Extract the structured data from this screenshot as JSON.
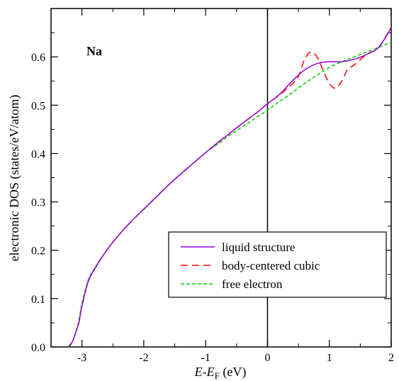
{
  "chart_data": {
    "type": "line",
    "title": "",
    "annotation": "Na",
    "xlabel": "E-E_F (eV)",
    "xlabel_parts": {
      "var": "E",
      "minus": "-",
      "sub_var": "E",
      "subscript": "F",
      "unit": " (eV)"
    },
    "ylabel": "electronic DOS (states/eV/atom)",
    "xlim": [
      -3.5,
      2.0
    ],
    "ylim": [
      0.0,
      0.7
    ],
    "xticks": [
      -3,
      -2,
      -1,
      0,
      1,
      2
    ],
    "xtick_labels": [
      "-3",
      "-2",
      "-1",
      "0",
      "1",
      "2"
    ],
    "yticks": [
      0.0,
      0.1,
      0.2,
      0.3,
      0.4,
      0.5,
      0.6
    ],
    "ytick_labels": [
      "0.0",
      "0.1",
      "0.2",
      "0.3",
      "0.4",
      "0.5",
      "0.6"
    ],
    "vertical_line_x": 0.0,
    "grid": false,
    "legend_position": "bottom-right",
    "series": [
      {
        "name": "liquid structure",
        "color": "#9400d3",
        "dash": "solid",
        "x": [
          -3.22,
          -3.15,
          -3.1,
          -3.05,
          -3.0,
          -2.9,
          -2.8,
          -2.6,
          -2.4,
          -2.2,
          -2.0,
          -1.8,
          -1.6,
          -1.4,
          -1.2,
          -1.0,
          -0.8,
          -0.6,
          -0.4,
          -0.2,
          0.0,
          0.2,
          0.4,
          0.6,
          0.8,
          1.0,
          1.2,
          1.4,
          1.6,
          1.8,
          2.0
        ],
        "y": [
          0.0,
          0.012,
          0.03,
          0.05,
          0.085,
          0.135,
          0.16,
          0.2,
          0.232,
          0.26,
          0.285,
          0.31,
          0.335,
          0.358,
          0.38,
          0.402,
          0.423,
          0.443,
          0.463,
          0.482,
          0.503,
          0.523,
          0.55,
          0.573,
          0.586,
          0.59,
          0.59,
          0.595,
          0.605,
          0.62,
          0.66
        ]
      },
      {
        "name": "body-centered cubic",
        "color": "#ff0000",
        "dash": "long-dash",
        "x": [
          -3.22,
          -3.15,
          -3.1,
          -3.05,
          -3.0,
          -2.9,
          -2.8,
          -2.6,
          -2.4,
          -2.2,
          -2.0,
          -1.8,
          -1.6,
          -1.4,
          -1.2,
          -1.0,
          -0.8,
          -0.6,
          -0.4,
          -0.2,
          0.0,
          0.2,
          0.4,
          0.5,
          0.6,
          0.7,
          0.8,
          0.9,
          1.0,
          1.1,
          1.2,
          1.3,
          1.4,
          1.6,
          1.8,
          2.0
        ],
        "y": [
          0.0,
          0.012,
          0.03,
          0.05,
          0.085,
          0.135,
          0.16,
          0.2,
          0.232,
          0.26,
          0.285,
          0.31,
          0.335,
          0.358,
          0.38,
          0.402,
          0.423,
          0.443,
          0.463,
          0.482,
          0.503,
          0.522,
          0.544,
          0.56,
          0.595,
          0.61,
          0.6,
          0.572,
          0.545,
          0.535,
          0.55,
          0.575,
          0.583,
          0.605,
          0.62,
          0.662
        ]
      },
      {
        "name": "free electron",
        "color": "#00cc00",
        "dash": "short-dash",
        "x": [
          -3.2,
          -3.15,
          -3.1,
          -3.05,
          -3.0,
          -2.9,
          -2.8,
          -2.6,
          -2.4,
          -2.2,
          -2.0,
          -1.8,
          -1.6,
          -1.4,
          -1.2,
          -1.0,
          -0.8,
          -0.6,
          -0.4,
          -0.2,
          0.0,
          0.2,
          0.4,
          0.6,
          0.8,
          1.0,
          1.2,
          1.4,
          1.6,
          1.8,
          2.0
        ],
        "y": [
          0.0,
          0.012,
          0.032,
          0.055,
          0.09,
          0.138,
          0.162,
          0.2,
          0.232,
          0.26,
          0.285,
          0.31,
          0.335,
          0.358,
          0.38,
          0.402,
          0.42,
          0.439,
          0.456,
          0.473,
          0.49,
          0.508,
          0.526,
          0.545,
          0.562,
          0.578,
          0.59,
          0.6,
          0.61,
          0.62,
          0.63
        ]
      }
    ]
  }
}
